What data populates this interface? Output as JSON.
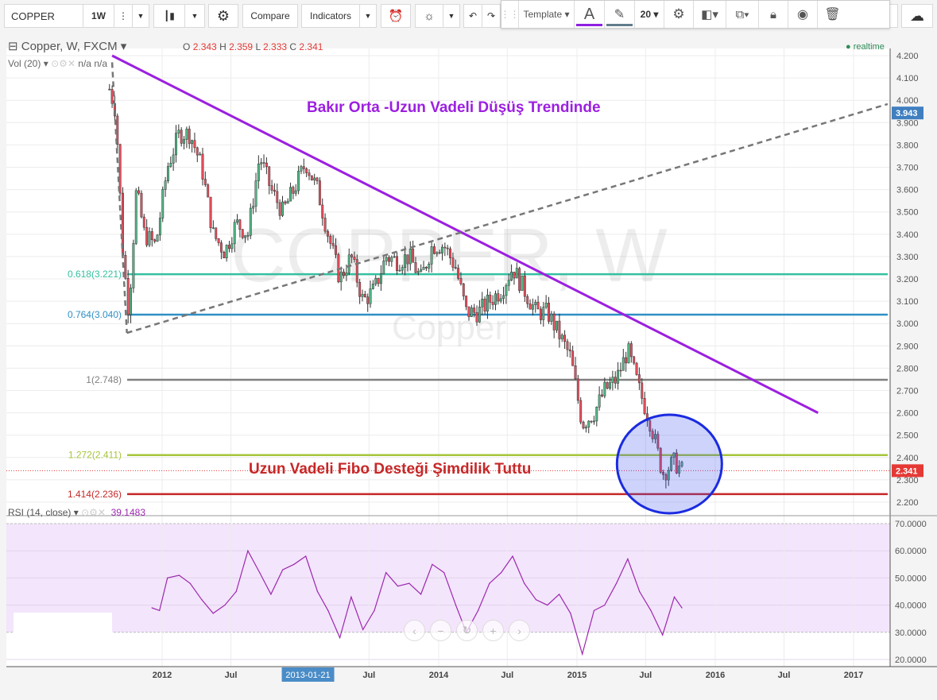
{
  "toolbar": {
    "symbol": "COPPER",
    "interval": "1W",
    "compare": "Compare",
    "indicators": "Indicators",
    "icons": [
      "more-icon",
      "chevron-down-icon",
      "candlestick-icon",
      "gear-icon",
      "alarm-add-icon",
      "lightbulb-icon",
      "undo-icon",
      "redo-icon",
      "cloud-icon",
      "cloud-upload-icon"
    ]
  },
  "drawing_toolbar": {
    "template": "Template",
    "font_size": "20",
    "text_color": "#8e1fe0",
    "line_color": "#607d8b",
    "icons": [
      "drag-handle-icon",
      "text-color-icon",
      "pencil-icon",
      "gear-icon",
      "bring-front-icon",
      "send-back-icon",
      "lock-icon",
      "eye-icon",
      "trash-icon"
    ]
  },
  "legend": {
    "title": "Copper, W, FXCM",
    "o_label": "O",
    "o": "2.343",
    "h_label": "H",
    "h": "2.359",
    "l_label": "L",
    "l": "2.333",
    "c_label": "C",
    "c": "2.341",
    "vol": "Vol (20)",
    "vol_val1": "n/a",
    "vol_val2": "n/a",
    "realtime": "realtime",
    "rsi": "RSI (14, close)",
    "rsi_val": "39.1483"
  },
  "watermark": {
    "main": "COPPER, W",
    "sub": "Copper"
  },
  "annotations": {
    "title": "Bakır Orta -Uzun Vadeli Düşüş Trendinde",
    "support": "Uzun Vadeli Fibo Desteği Şimdilik Tuttu"
  },
  "colors": {
    "up": "#53b987",
    "down": "#eb4d5c",
    "trend": "#9c1fe0",
    "rsi": "#9c27b0",
    "rsi_bg": "#f3e5fb",
    "circle": "#1a2be0"
  },
  "chart_data": [
    {
      "type": "candlestick",
      "yaxis_ticks": [
        "4.200",
        "4.100",
        "4.000",
        "3.900",
        "3.800",
        "3.700",
        "3.600",
        "3.500",
        "3.400",
        "3.300",
        "3.200",
        "3.100",
        "3.000",
        "2.900",
        "2.800",
        "2.700",
        "2.600",
        "2.500",
        "2.400",
        "2.300",
        "2.200"
      ],
      "ylim": [
        2.15,
        4.23
      ],
      "xaxis_ticks": [
        {
          "label": "2012",
          "date": "2012-01-01"
        },
        {
          "label": "Jul",
          "date": "2012-07-01"
        },
        {
          "label": "2013-01-21",
          "date": "2013-01-21",
          "highlight": true
        },
        {
          "label": "Jul",
          "date": "2013-07-01"
        },
        {
          "label": "2014",
          "date": "2014-01-01"
        },
        {
          "label": "Jul",
          "date": "2014-07-01"
        },
        {
          "label": "2015",
          "date": "2015-01-01"
        },
        {
          "label": "Jul",
          "date": "2015-07-01"
        },
        {
          "label": "2016",
          "date": "2016-01-01"
        },
        {
          "label": "Jul",
          "date": "2016-07-01"
        },
        {
          "label": "2017",
          "date": "2017-01-01"
        }
      ],
      "closes": [
        [
          "2011-08-15",
          4.05
        ],
        [
          "2011-09-01",
          3.95
        ],
        [
          "2011-09-20",
          3.3
        ],
        [
          "2011-10-05",
          3.05
        ],
        [
          "2011-10-25",
          3.6
        ],
        [
          "2011-11-15",
          3.4
        ],
        [
          "2011-12-15",
          3.35
        ],
        [
          "2012-01-15",
          3.7
        ],
        [
          "2012-02-15",
          3.85
        ],
        [
          "2012-03-15",
          3.85
        ],
        [
          "2012-04-15",
          3.7
        ],
        [
          "2012-05-15",
          3.4
        ],
        [
          "2012-06-15",
          3.32
        ],
        [
          "2012-07-15",
          3.45
        ],
        [
          "2012-08-15",
          3.4
        ],
        [
          "2012-09-15",
          3.75
        ],
        [
          "2012-10-15",
          3.6
        ],
        [
          "2012-11-15",
          3.5
        ],
        [
          "2012-12-15",
          3.6
        ],
        [
          "2013-01-15",
          3.72
        ],
        [
          "2013-02-15",
          3.6
        ],
        [
          "2013-03-15",
          3.4
        ],
        [
          "2013-04-15",
          3.2
        ],
        [
          "2013-05-15",
          3.3
        ],
        [
          "2013-06-15",
          3.1
        ],
        [
          "2013-07-15",
          3.15
        ],
        [
          "2013-08-15",
          3.3
        ],
        [
          "2013-09-15",
          3.28
        ],
        [
          "2013-10-15",
          3.3
        ],
        [
          "2013-11-15",
          3.2
        ],
        [
          "2013-12-15",
          3.35
        ],
        [
          "2014-01-15",
          3.35
        ],
        [
          "2014-02-15",
          3.25
        ],
        [
          "2014-03-15",
          3.05
        ],
        [
          "2014-04-15",
          3.05
        ],
        [
          "2014-05-15",
          3.1
        ],
        [
          "2014-06-15",
          3.15
        ],
        [
          "2014-07-15",
          3.25
        ],
        [
          "2014-08-15",
          3.15
        ],
        [
          "2014-09-15",
          3.05
        ],
        [
          "2014-10-15",
          3.05
        ],
        [
          "2014-11-15",
          2.95
        ],
        [
          "2014-12-15",
          2.85
        ],
        [
          "2015-01-15",
          2.55
        ],
        [
          "2015-02-15",
          2.6
        ],
        [
          "2015-03-15",
          2.7
        ],
        [
          "2015-04-15",
          2.75
        ],
        [
          "2015-05-15",
          2.88
        ],
        [
          "2015-06-15",
          2.7
        ],
        [
          "2015-07-15",
          2.55
        ],
        [
          "2015-08-15",
          2.33
        ],
        [
          "2015-09-15",
          2.38
        ],
        [
          "2015-10-05",
          2.341
        ]
      ],
      "price_labels": [
        {
          "value": "3.943",
          "price": 3.943,
          "color": "#3f7fc0"
        },
        {
          "value": "2.341",
          "price": 2.341,
          "color": "#e53935"
        }
      ],
      "fib_levels": [
        {
          "label": "0.618(3.221)",
          "price": 3.221,
          "color": "#34c0a0"
        },
        {
          "label": "0.764(3.040)",
          "price": 3.04,
          "color": "#2f8fc5"
        },
        {
          "label": "1(2.748)",
          "price": 2.748,
          "color": "#808080"
        },
        {
          "label": "1.272(2.411)",
          "price": 2.411,
          "color": "#a6c63a"
        },
        {
          "label": "1.414(2.236)",
          "price": 2.236,
          "color": "#c62828"
        }
      ],
      "trendlines": [
        {
          "style": "solid",
          "color": "#9c1fe0",
          "from": [
            "2011-08-22",
            4.2
          ],
          "to": [
            "2016-09-29",
            2.6
          ]
        },
        {
          "style": "dashed",
          "color": "#777777",
          "from": [
            "2011-09-30",
            2.958
          ],
          "to": [
            "2017-04-01",
            3.983
          ]
        },
        {
          "style": "dashed",
          "color": "#777777",
          "from": [
            "2011-08-22",
            4.17
          ],
          "to": [
            "2011-09-30",
            2.958
          ]
        }
      ],
      "circle": {
        "center": [
          "2015-09-02",
          2.371
        ]
      }
    },
    {
      "type": "line",
      "name": "RSI (14, close)",
      "ylim": [
        18,
        71
      ],
      "yaxis_ticks": [
        "70.0000",
        "60.0000",
        "50.0000",
        "40.0000",
        "30.0000",
        "20.0000"
      ],
      "bands": [
        30,
        70
      ],
      "values": [
        [
          "2011-12-05",
          39
        ],
        [
          "2011-12-25",
          38
        ],
        [
          "2012-01-15",
          50
        ],
        [
          "2012-02-15",
          51
        ],
        [
          "2012-03-15",
          48
        ],
        [
          "2012-04-15",
          42
        ],
        [
          "2012-05-15",
          37
        ],
        [
          "2012-06-15",
          40
        ],
        [
          "2012-07-15",
          45
        ],
        [
          "2012-08-15",
          60
        ],
        [
          "2012-09-15",
          52
        ],
        [
          "2012-10-15",
          44
        ],
        [
          "2012-11-15",
          53
        ],
        [
          "2012-12-15",
          55
        ],
        [
          "2013-01-15",
          58
        ],
        [
          "2013-02-15",
          45
        ],
        [
          "2013-03-15",
          38
        ],
        [
          "2013-04-15",
          28
        ],
        [
          "2013-05-15",
          43
        ],
        [
          "2013-06-15",
          31
        ],
        [
          "2013-07-15",
          38
        ],
        [
          "2013-08-15",
          52
        ],
        [
          "2013-09-15",
          47
        ],
        [
          "2013-10-15",
          48
        ],
        [
          "2013-11-15",
          44
        ],
        [
          "2013-12-15",
          55
        ],
        [
          "2014-01-15",
          52
        ],
        [
          "2014-02-15",
          40
        ],
        [
          "2014-03-15",
          30
        ],
        [
          "2014-04-15",
          38
        ],
        [
          "2014-05-15",
          48
        ],
        [
          "2014-06-15",
          52
        ],
        [
          "2014-07-15",
          58
        ],
        [
          "2014-08-15",
          48
        ],
        [
          "2014-09-15",
          42
        ],
        [
          "2014-10-15",
          40
        ],
        [
          "2014-11-15",
          44
        ],
        [
          "2014-12-15",
          37
        ],
        [
          "2015-01-15",
          22
        ],
        [
          "2015-02-15",
          38
        ],
        [
          "2015-03-15",
          40
        ],
        [
          "2015-04-15",
          48
        ],
        [
          "2015-05-15",
          57
        ],
        [
          "2015-06-15",
          45
        ],
        [
          "2015-07-15",
          38
        ],
        [
          "2015-08-15",
          29
        ],
        [
          "2015-09-15",
          43
        ],
        [
          "2015-10-05",
          39
        ]
      ]
    }
  ],
  "nav_buttons": [
    "‹",
    "−",
    "↻",
    "+",
    "›"
  ]
}
